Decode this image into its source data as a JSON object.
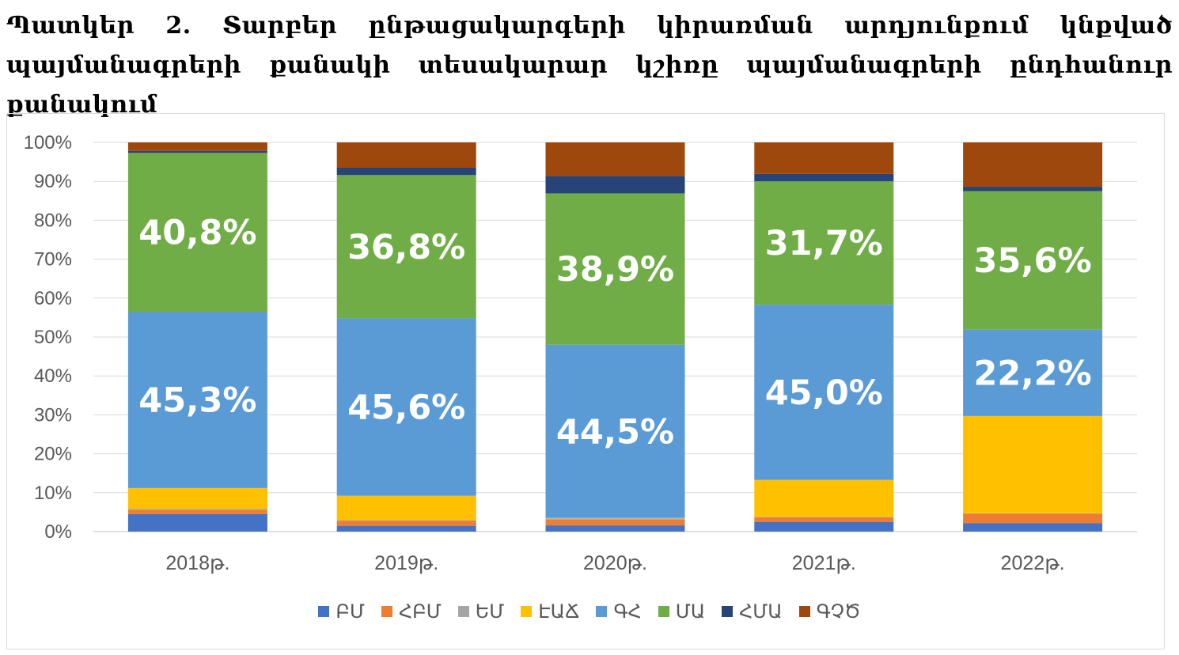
{
  "title": "Պատկեր 2.  Տարբեր ընթացակարգերի կիրառման արդյունքում կնքված պայմանագրերի քանակի տեսակարար կշիռը պայմանագրերի ընդհանուր քանակում",
  "chart_data": {
    "type": "bar",
    "stacked": true,
    "categories": [
      "2018թ.",
      "2019թ.",
      "2020թ.",
      "2021թ.",
      "2022թ."
    ],
    "ylim": [
      0,
      100
    ],
    "yticks": [
      "0%",
      "10%",
      "20%",
      "30%",
      "40%",
      "50%",
      "60%",
      "70%",
      "80%",
      "90%",
      "100%"
    ],
    "grid": true,
    "legend_position": "bottom",
    "series": [
      {
        "name": "ԲՄ",
        "color": "#4472c4",
        "values": [
          4.5,
          1.5,
          1.6,
          2.5,
          2.2
        ],
        "labels": [
          "",
          "",
          "",
          "",
          ""
        ]
      },
      {
        "name": "ՀԲՄ",
        "color": "#ed7d31",
        "values": [
          1.0,
          1.3,
          1.5,
          1.2,
          2.4
        ],
        "labels": [
          "",
          "",
          "",
          "",
          ""
        ]
      },
      {
        "name": "ԵՄ",
        "color": "#a5a5a5",
        "values": [
          0.3,
          0.2,
          0.3,
          0.1,
          0.1
        ],
        "labels": [
          "",
          "",
          "",
          "",
          ""
        ]
      },
      {
        "name": "ԷԱՃ",
        "color": "#ffc000",
        "values": [
          5.4,
          6.2,
          0.1,
          9.5,
          25.0
        ],
        "labels": [
          "",
          "",
          "",
          "",
          ""
        ]
      },
      {
        "name": "ԳՀ",
        "color": "#5b9bd5",
        "values": [
          45.3,
          45.6,
          44.5,
          45.0,
          22.2
        ],
        "labels": [
          "45,3%",
          "45,6%",
          "44,5%",
          "45,0%",
          "22,2%"
        ]
      },
      {
        "name": "ՄԱ",
        "color": "#70ad47",
        "values": [
          40.8,
          36.8,
          38.9,
          31.7,
          35.6
        ],
        "labels": [
          "40,8%",
          "36,8%",
          "38,9%",
          "31,7%",
          "35,6%"
        ]
      },
      {
        "name": "ՀՄԱ",
        "color": "#264478",
        "values": [
          0.5,
          1.9,
          4.5,
          1.9,
          1.1
        ],
        "labels": [
          "",
          "",
          "",
          "",
          ""
        ]
      },
      {
        "name": "ԳՉԾ",
        "color": "#9e480e",
        "values": [
          2.2,
          6.5,
          8.6,
          8.1,
          11.4
        ],
        "labels": [
          "",
          "",
          "",
          "",
          ""
        ]
      }
    ]
  }
}
